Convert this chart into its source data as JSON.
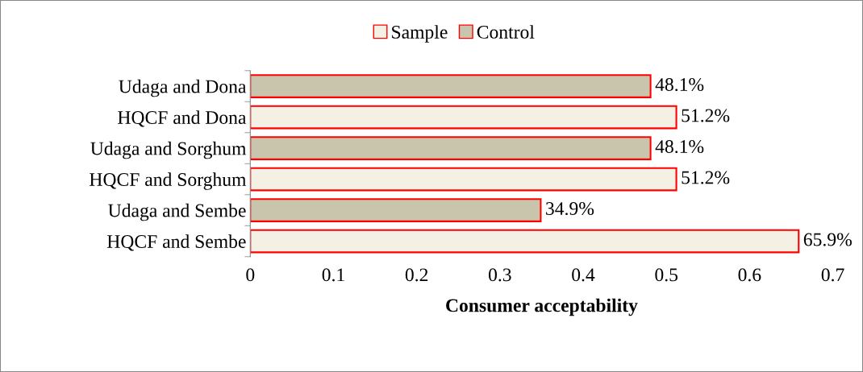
{
  "chart_data": {
    "type": "bar",
    "orientation": "horizontal",
    "xlabel": "Consumer acceptability",
    "categories": [
      "Udaga and Dona",
      "HQCF and Dona",
      "Udaga and Sorghum",
      "HQCF and Sorghum",
      "Udaga and Sembe",
      "HQCF and Sembe"
    ],
    "series": [
      {
        "name": "Sample",
        "color": "#f4f1e4",
        "values": [
          null,
          0.512,
          null,
          0.512,
          null,
          0.659
        ],
        "value_labels": [
          null,
          "51.2%",
          null,
          "51.2%",
          null,
          "65.9%"
        ]
      },
      {
        "name": "Control",
        "color": "#c9c5ad",
        "values": [
          0.481,
          null,
          0.481,
          null,
          0.349,
          null
        ],
        "value_labels": [
          "48.1%",
          null,
          "48.1%",
          null,
          "34.9%",
          null
        ]
      }
    ],
    "xlim": [
      0,
      0.7
    ],
    "xticks": [
      0,
      0.1,
      0.2,
      0.3,
      0.4,
      0.5,
      0.6,
      0.7
    ],
    "grid": false,
    "legend": "top"
  }
}
